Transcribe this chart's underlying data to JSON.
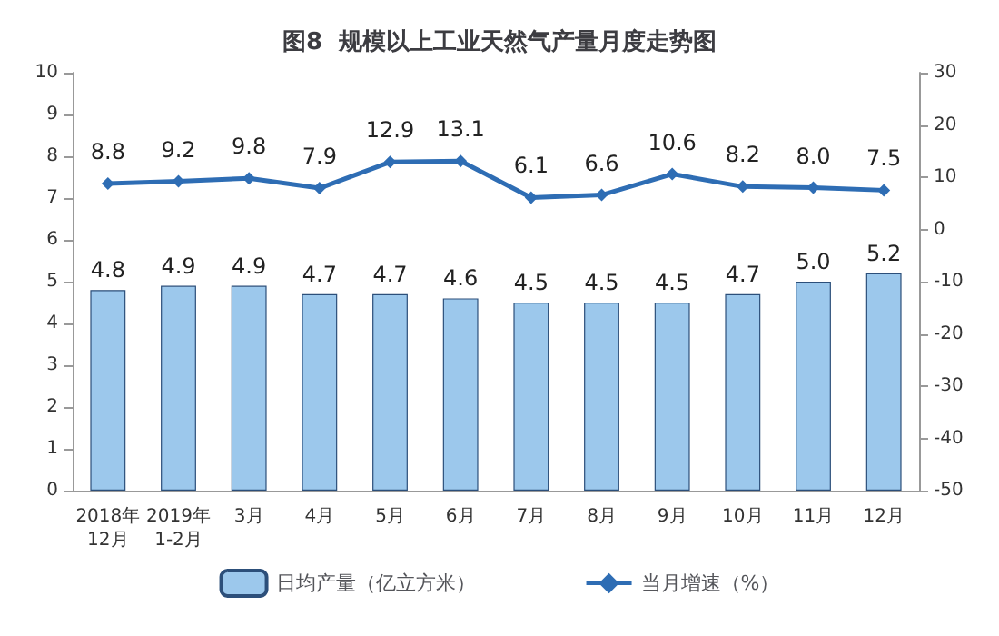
{
  "chart_data": {
    "type": "bar",
    "title": "图8  规模以上工业天然气产量月度走势图",
    "categories": [
      "2018年\n12月",
      "2019年\n1-2月",
      "3月",
      "4月",
      "5月",
      "6月",
      "7月",
      "8月",
      "9月",
      "10月",
      "11月",
      "12月"
    ],
    "series": [
      {
        "name": "日均产量（亿立方米）",
        "color": "#9cc8ec",
        "values": [
          4.8,
          4.9,
          4.9,
          4.7,
          4.7,
          4.6,
          4.5,
          4.5,
          4.5,
          4.7,
          5.0,
          5.2
        ],
        "value_labels": [
          "4.8",
          "4.9",
          "4.9",
          "4.7",
          "4.7",
          "4.6",
          "4.5",
          "4.5",
          "4.5",
          "4.7",
          "5.0",
          "5.2"
        ]
      },
      {
        "name": "当月增速（%）",
        "type": "line",
        "axis": "y2",
        "color": "#2e6db4",
        "marker": "diamond",
        "values": [
          8.8,
          9.2,
          9.8,
          7.9,
          12.9,
          13.1,
          6.1,
          6.6,
          10.6,
          8.2,
          8.0,
          7.5
        ],
        "value_labels": [
          "8.8",
          "9.2",
          "9.8",
          "7.9",
          "12.9",
          "13.1",
          "6.1",
          "6.6",
          "10.6",
          "8.2",
          "8.0",
          "7.5"
        ]
      }
    ],
    "ylim": [
      0,
      10
    ],
    "yticks": [
      0,
      1,
      2,
      3,
      4,
      5,
      6,
      7,
      8,
      9,
      10
    ],
    "y2lim": [
      -50,
      30
    ],
    "y2ticks": [
      -50,
      -40,
      -30,
      -20,
      -10,
      0,
      10,
      20,
      30
    ],
    "legend": "bottom",
    "grid": false
  }
}
